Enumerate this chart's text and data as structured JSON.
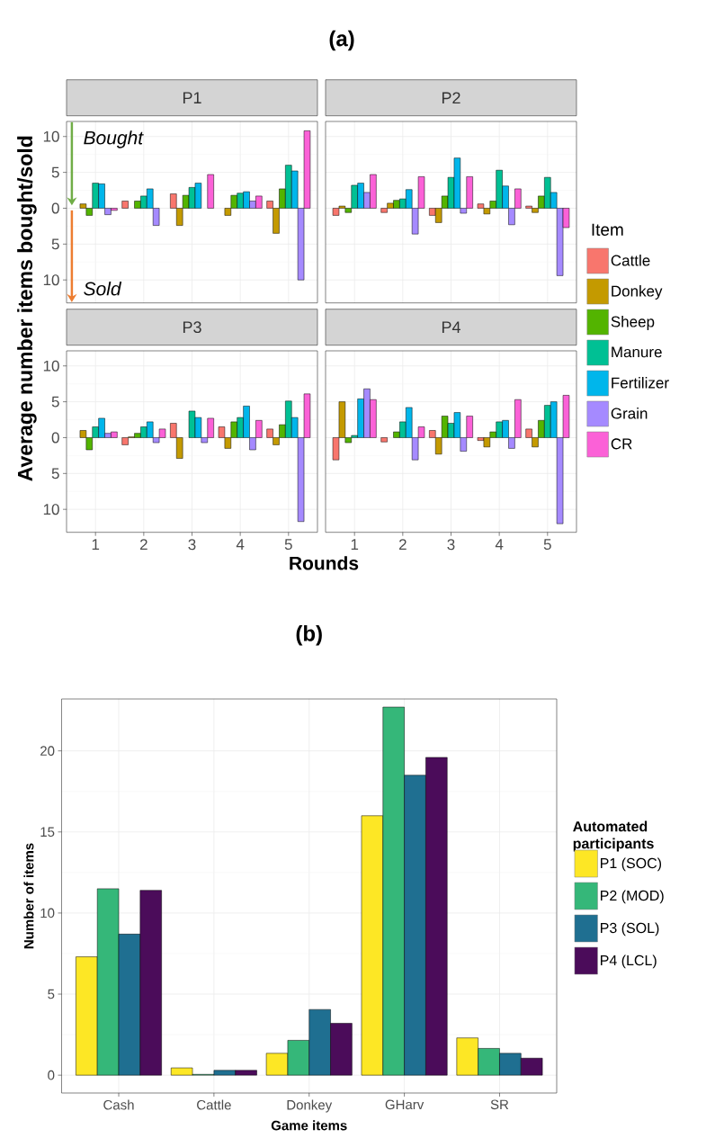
{
  "chart_data": [
    {
      "type": "bar",
      "title": "P1",
      "ylabel": "Average number items bought/sold",
      "annotations": [
        "(a)",
        "Bought",
        "Sold"
      ],
      "categories": [
        "1",
        "2",
        "3",
        "4",
        "5"
      ],
      "series": [
        {
          "color": "#f8766d",
          "values": [
            null,
            1.0,
            2.0,
            null,
            1.0
          ]
        },
        {
          "color": "#c49a00",
          "values": [
            0.6,
            null,
            -2.4,
            -1.0,
            -3.5
          ]
        },
        {
          "color": "#53b400",
          "values": [
            -1.0,
            1.0,
            1.8,
            1.8,
            2.7
          ]
        },
        {
          "color": "#00c094",
          "values": [
            3.5,
            1.7,
            2.9,
            2.1,
            6.0
          ]
        },
        {
          "color": "#00b6eb",
          "values": [
            3.4,
            2.7,
            3.5,
            2.3,
            5.2
          ]
        },
        {
          "color": "#a58aff",
          "values": [
            -0.9,
            -2.4,
            null,
            1.0,
            -10.0
          ]
        },
        {
          "color": "#fb61d7",
          "values": [
            -0.3,
            null,
            4.7,
            1.7,
            10.8
          ]
        }
      ],
      "ylim": [
        -13.2,
        12.1
      ],
      "yticks": [
        {
          "value": -10,
          "label": "10"
        },
        {
          "value": -5,
          "label": "5"
        },
        0,
        5,
        10
      ],
      "grid": true,
      "tick_labels": "y"
    },
    {
      "type": "bar",
      "title": "P2",
      "legend_title": "Item",
      "legend": "right",
      "categories": [
        "1",
        "2",
        "3",
        "4",
        "5"
      ],
      "series": [
        {
          "name": "Cattle",
          "color": "#f8766d",
          "values": [
            -1.0,
            -0.6,
            -1.0,
            0.6,
            0.3
          ]
        },
        {
          "name": "Donkey",
          "color": "#c49a00",
          "values": [
            0.3,
            0.7,
            -2.0,
            -0.8,
            -0.6
          ]
        },
        {
          "name": "Sheep",
          "color": "#53b400",
          "values": [
            -0.6,
            1.1,
            1.7,
            1.0,
            1.7
          ]
        },
        {
          "name": "Manure",
          "color": "#00c094",
          "values": [
            3.2,
            1.3,
            4.3,
            5.3,
            4.3
          ]
        },
        {
          "name": "Fertilizer",
          "color": "#00b6eb",
          "values": [
            3.5,
            2.6,
            7.0,
            3.1,
            2.2
          ]
        },
        {
          "name": "Grain",
          "color": "#a58aff",
          "values": [
            2.2,
            -3.6,
            -0.7,
            -2.3,
            -9.4
          ]
        },
        {
          "name": "CR",
          "color": "#fb61d7",
          "values": [
            4.7,
            4.4,
            4.4,
            2.7,
            -2.7
          ]
        }
      ],
      "ylim": [
        -13.2,
        12.1
      ],
      "yticks": [
        {
          "value": -10,
          "label": null
        },
        {
          "value": -5,
          "label": null
        },
        {
          "value": 0,
          "label": null
        },
        {
          "value": 5,
          "label": null
        },
        {
          "value": 10,
          "label": null
        }
      ],
      "grid": true,
      "tick_labels": false
    },
    {
      "type": "bar",
      "title": "P3",
      "xlabel": "Rounds",
      "categories": [
        "1",
        "2",
        "3",
        "4",
        "5"
      ],
      "series": [
        {
          "color": "#f8766d",
          "values": [
            null,
            -1.0,
            2.0,
            1.5,
            1.2
          ]
        },
        {
          "color": "#c49a00",
          "values": [
            1.0,
            0.1,
            -2.9,
            -1.5,
            -1.0
          ]
        },
        {
          "color": "#53b400",
          "values": [
            -1.7,
            0.6,
            null,
            2.2,
            1.8
          ]
        },
        {
          "color": "#00c094",
          "values": [
            1.5,
            1.5,
            3.7,
            2.8,
            5.1
          ]
        },
        {
          "color": "#00b6eb",
          "values": [
            2.7,
            2.2,
            2.8,
            4.4,
            2.8
          ]
        },
        {
          "color": "#a58aff",
          "values": [
            0.6,
            -0.7,
            -0.7,
            -1.7,
            -11.7
          ]
        },
        {
          "color": "#fb61d7",
          "values": [
            0.8,
            1.2,
            2.7,
            2.4,
            6.1
          ]
        }
      ],
      "ylim": [
        -13.2,
        12.1
      ],
      "yticks": [
        {
          "value": -10,
          "label": "10"
        },
        {
          "value": -5,
          "label": "5"
        },
        0,
        5,
        10
      ],
      "grid": true
    },
    {
      "type": "bar",
      "title": "P4",
      "categories": [
        "1",
        "2",
        "3",
        "4",
        "5"
      ],
      "series": [
        {
          "color": "#f8766d",
          "values": [
            -3.1,
            -0.6,
            1.0,
            -0.4,
            1.2
          ]
        },
        {
          "color": "#c49a00",
          "values": [
            5.0,
            null,
            -2.3,
            -1.3,
            -1.3
          ]
        },
        {
          "color": "#53b400",
          "values": [
            -0.7,
            0.8,
            3.0,
            0.8,
            2.4
          ]
        },
        {
          "color": "#00c094",
          "values": [
            0.3,
            2.2,
            2.0,
            2.2,
            4.5
          ]
        },
        {
          "color": "#00b6eb",
          "values": [
            5.4,
            4.2,
            3.5,
            2.4,
            5.0
          ]
        },
        {
          "color": "#a58aff",
          "values": [
            6.8,
            -3.1,
            -1.9,
            -1.5,
            -12.0
          ]
        },
        {
          "color": "#fb61d7",
          "values": [
            5.3,
            1.5,
            3.0,
            5.3,
            5.9
          ]
        }
      ],
      "ylim": [
        -13.2,
        12.1
      ],
      "yticks": [
        {
          "value": -10,
          "label": null
        },
        {
          "value": -5,
          "label": null
        },
        {
          "value": 0,
          "label": null
        },
        {
          "value": 5,
          "label": null
        },
        {
          "value": 10,
          "label": null
        }
      ],
      "grid": true,
      "tick_labels": "x"
    },
    {
      "type": "bar",
      "title": "(b)",
      "xlabel": "Game items",
      "ylabel": "Number of items",
      "legend_title": "Automated participants",
      "legend": "right",
      "categories": [
        "Cash",
        "Cattle",
        "Donkey",
        "GHarv",
        "SR"
      ],
      "series": [
        {
          "name": "P1 (SOC)",
          "color": "#fde725",
          "values": [
            7.3,
            0.45,
            1.35,
            16.0,
            2.3
          ]
        },
        {
          "name": "P2 (MOD)",
          "color": "#35b779",
          "values": [
            11.5,
            0.05,
            2.15,
            22.7,
            1.65
          ]
        },
        {
          "name": "P3 (SOL)",
          "color": "#1f6f91",
          "values": [
            8.7,
            0.3,
            4.05,
            18.5,
            1.35
          ]
        },
        {
          "name": "P4 (LCL)",
          "color": "#4b0c5a",
          "values": [
            11.4,
            0.3,
            3.2,
            19.6,
            1.05
          ]
        }
      ],
      "ylim": [
        -1.1,
        23.2
      ],
      "yticks": [
        0,
        5,
        10,
        15,
        20
      ],
      "grid": true
    }
  ]
}
